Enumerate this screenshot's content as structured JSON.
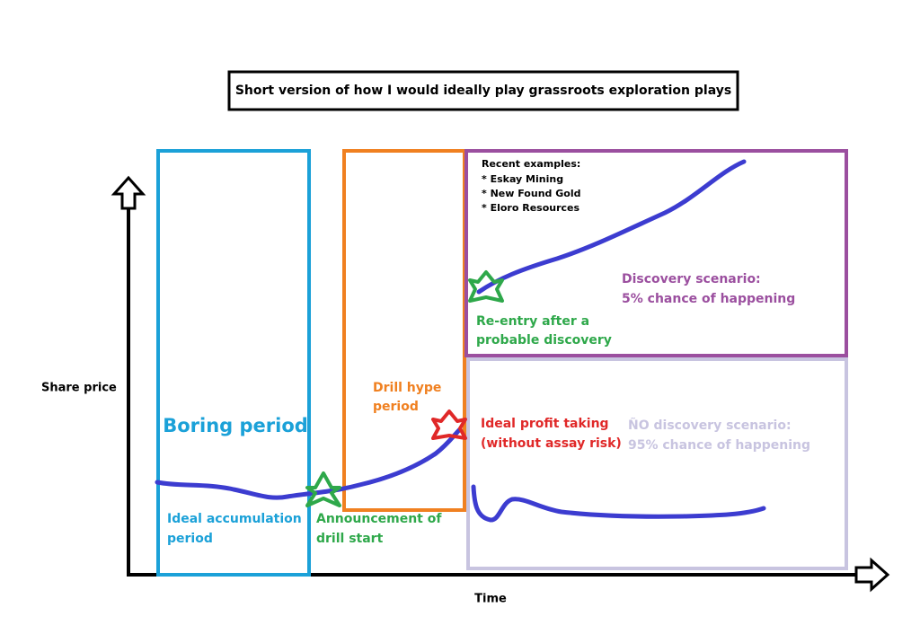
{
  "title": "Short version of how I would ideally play grassroots exploration plays",
  "axes": {
    "y_label": "Share price",
    "x_label": "Time"
  },
  "boring": {
    "title": "Boring period",
    "note": [
      "Ideal accumulation",
      "period"
    ]
  },
  "drill_start": {
    "note": [
      "Announcement of",
      "drill start"
    ]
  },
  "hype": {
    "note": [
      "Drill hype",
      "period"
    ]
  },
  "profit": {
    "note": [
      "Ideal profit taking",
      "(without assay risk)"
    ]
  },
  "examples": [
    "Recent examples:",
    "* Eskay Mining",
    "* New Found Gold",
    "* Eloro Resources"
  ],
  "discovery": {
    "note": [
      "Discovery scenario:",
      "5% chance of happening"
    ]
  },
  "reentry": {
    "note": [
      "Re-entry after a",
      "probable discovery"
    ]
  },
  "no_discovery": {
    "note": [
      "ÑO discovery scenario:",
      "95% chance of happening"
    ]
  }
}
